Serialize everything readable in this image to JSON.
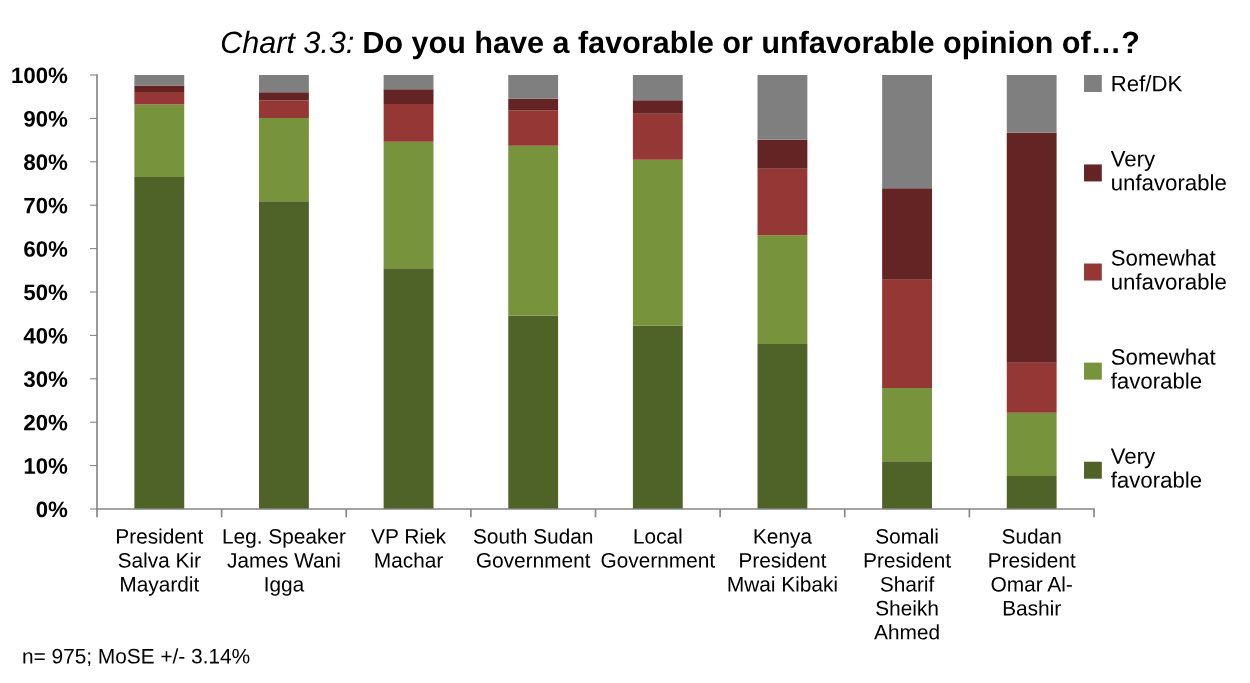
{
  "chart_data": {
    "type": "bar",
    "stacked": true,
    "title": "Chart 3.3: Do you have a favorable or unfavorable opinion of…?",
    "categories": [
      "President\nSalva Kir\nMayardit",
      "Leg. Speaker\nJames Wani\nIgga",
      "VP Riek\nMachar",
      "South Sudan\nGovernment",
      "Local\nGovernment",
      "Kenya\nPresident\nMwai Kibaki",
      "Somali\nPresident\nSharif\nSheikh\nAhmed",
      "Sudan\nPresident\nOmar Al-\nBashir"
    ],
    "series": [
      {
        "name": "Very favorable",
        "color": "#4f6228",
        "values": [
          76.5,
          70.9,
          55.5,
          44.6,
          42.3,
          38.0,
          11.0,
          7.6
        ]
      },
      {
        "name": "Somewhat favorable",
        "color": "#77933c",
        "values": [
          16.7,
          19.2,
          29.1,
          39.1,
          38.2,
          25.1,
          16.9,
          14.6
        ]
      },
      {
        "name": "Somewhat unfavorable",
        "color": "#953735",
        "values": [
          2.9,
          4.0,
          8.7,
          8.2,
          10.6,
          15.3,
          24.9,
          11.5
        ]
      },
      {
        "name": "Very unfavorable",
        "color": "#632423",
        "values": [
          1.5,
          1.9,
          3.4,
          2.6,
          3.1,
          6.7,
          21.1,
          53.0
        ]
      },
      {
        "name": "Ref/DK",
        "color": "#7f7f7f",
        "values": [
          2.4,
          4.0,
          3.3,
          5.5,
          5.8,
          14.9,
          26.1,
          13.3
        ]
      }
    ],
    "ylim": [
      0,
      100
    ],
    "yticks": [
      {
        "value": 0,
        "label": "0%"
      },
      {
        "value": 10,
        "label": "10%"
      },
      {
        "value": 20,
        "label": "20%"
      },
      {
        "value": 30,
        "label": "30%"
      },
      {
        "value": 40,
        "label": "40%"
      },
      {
        "value": 50,
        "label": "50%"
      },
      {
        "value": 60,
        "label": "60%"
      },
      {
        "value": 70,
        "label": "70%"
      },
      {
        "value": 80,
        "label": "80%"
      },
      {
        "value": 90,
        "label": "90%"
      },
      {
        "value": 100,
        "label": "100%"
      }
    ],
    "legend": "right",
    "annotations": [
      "n= 975; MoSE +/- 3.14%"
    ]
  }
}
